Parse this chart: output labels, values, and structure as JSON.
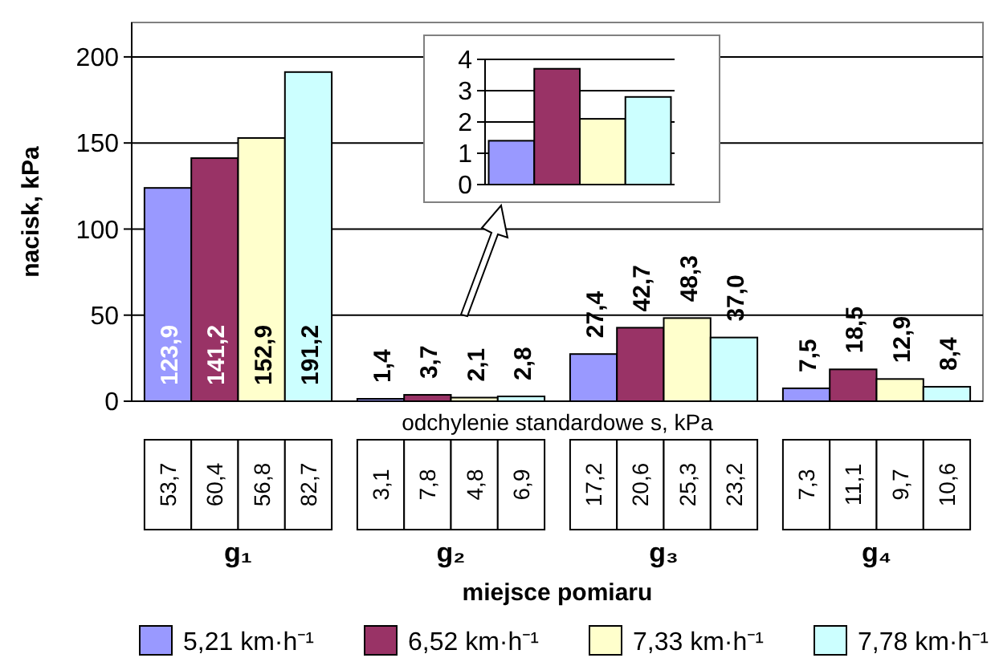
{
  "chart_data": [
    {
      "type": "bar",
      "ylabel": "nacisk, kPa",
      "xlabel": "miejsce pomiaru",
      "categories": [
        "g₁",
        "g₂",
        "g₃",
        "g₄"
      ],
      "ylim": [
        0,
        220
      ],
      "yticks": [
        0,
        50,
        100,
        150,
        200
      ],
      "grid": "y",
      "legend": "bottom",
      "series": [
        {
          "name": "5,21 km·h⁻¹",
          "color": "#9999ff",
          "values": [
            123.9,
            1.4,
            27.4,
            7.5
          ],
          "value_labels": [
            "123,9",
            "1,4",
            "27,4",
            "7,5"
          ]
        },
        {
          "name": "6,52 km·h⁻¹",
          "color": "#993366",
          "values": [
            141.2,
            3.7,
            42.7,
            18.5
          ],
          "value_labels": [
            "141,2",
            "3,7",
            "42,7",
            "18,5"
          ]
        },
        {
          "name": "7,33 km·h⁻¹",
          "color": "#ffffcc",
          "values": [
            152.9,
            2.1,
            48.3,
            12.9
          ],
          "value_labels": [
            "152,9",
            "2,1",
            "48,3",
            "12,9"
          ]
        },
        {
          "name": "7,78 km·h⁻¹",
          "color": "#ccffff",
          "values": [
            191.2,
            2.8,
            37.0,
            8.4
          ],
          "value_labels": [
            "191,2",
            "2,8",
            "37,0",
            "8,4"
          ]
        }
      ],
      "annotations": [
        "odchylenie standardowe s, kPa",
        "53,7",
        "60,4",
        "56,8",
        "82,7",
        "3,1",
        "7,8",
        "4,8",
        "6,9",
        "17,2",
        "20,6",
        "25,3",
        "23,2",
        "7,3",
        "11,1",
        "9,7",
        "10,6"
      ]
    },
    {
      "type": "bar",
      "categories": [
        null
      ],
      "ylim": [
        0,
        4
      ],
      "yticks": [
        0,
        1,
        2,
        3,
        4
      ],
      "grid": "y",
      "series": [
        {
          "color": "#9999ff",
          "values": [
            1.4
          ]
        },
        {
          "color": "#993366",
          "values": [
            3.7
          ]
        },
        {
          "color": "#ffffcc",
          "values": [
            2.1
          ]
        },
        {
          "color": "#ccffff",
          "values": [
            2.8
          ]
        }
      ]
    }
  ]
}
